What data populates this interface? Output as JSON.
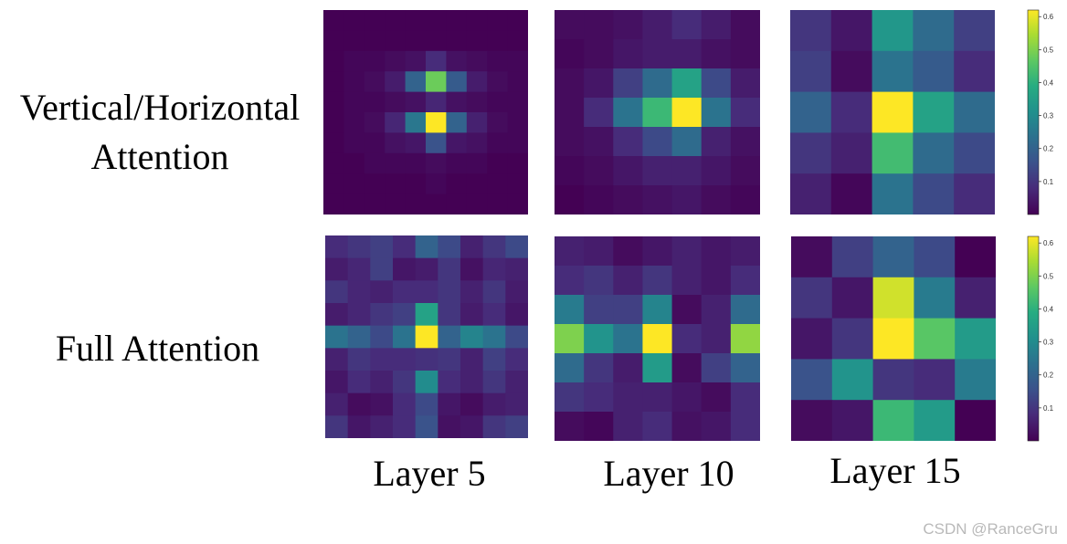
{
  "row_labels": [
    "Vertical/Horizontal\nAttention",
    "Full Attention"
  ],
  "column_labels": [
    "Layer 5",
    "Layer 10",
    "Layer 15"
  ],
  "watermark": "CSDN @RanceGru",
  "chart_data": {
    "type": "heatmap",
    "colormap": "viridis",
    "value_range": [
      0,
      0.62
    ],
    "colorbar_ticks": [
      "0.1",
      "0.2",
      "0.3",
      "0.4",
      "0.5",
      "0.6"
    ],
    "panels": [
      {
        "row": "Vertical/Horizontal Attention",
        "column": "Layer 5",
        "grid": [
          [
            0.0,
            0.0,
            0.0,
            0.0,
            0.0,
            0.0,
            0.0,
            0.0,
            0.0,
            0.0
          ],
          [
            0.0,
            0.0,
            0.0,
            0.0,
            0.0,
            0.0,
            0.0,
            0.0,
            0.0,
            0.0
          ],
          [
            0.0,
            0.01,
            0.01,
            0.02,
            0.03,
            0.08,
            0.03,
            0.02,
            0.01,
            0.01
          ],
          [
            0.0,
            0.01,
            0.02,
            0.05,
            0.2,
            0.48,
            0.18,
            0.05,
            0.02,
            0.01
          ],
          [
            0.0,
            0.01,
            0.01,
            0.02,
            0.03,
            0.07,
            0.03,
            0.02,
            0.01,
            0.01
          ],
          [
            0.0,
            0.01,
            0.02,
            0.07,
            0.25,
            0.62,
            0.2,
            0.06,
            0.02,
            0.01
          ],
          [
            0.0,
            0.01,
            0.01,
            0.03,
            0.04,
            0.16,
            0.04,
            0.03,
            0.01,
            0.01
          ],
          [
            0.0,
            0.0,
            0.01,
            0.01,
            0.01,
            0.02,
            0.01,
            0.01,
            0.0,
            0.0
          ],
          [
            0.0,
            0.0,
            0.0,
            0.0,
            0.0,
            0.01,
            0.0,
            0.0,
            0.0,
            0.0
          ],
          [
            0.0,
            0.0,
            0.0,
            0.0,
            0.0,
            0.0,
            0.0,
            0.0,
            0.0,
            0.0
          ]
        ]
      },
      {
        "row": "Vertical/Horizontal Attention",
        "column": "Layer 10",
        "grid": [
          [
            0.02,
            0.02,
            0.03,
            0.05,
            0.08,
            0.05,
            0.02
          ],
          [
            0.01,
            0.02,
            0.04,
            0.05,
            0.05,
            0.03,
            0.02
          ],
          [
            0.02,
            0.04,
            0.12,
            0.22,
            0.36,
            0.14,
            0.05
          ],
          [
            0.02,
            0.08,
            0.24,
            0.42,
            0.62,
            0.24,
            0.08
          ],
          [
            0.02,
            0.03,
            0.08,
            0.14,
            0.22,
            0.06,
            0.03
          ],
          [
            0.01,
            0.02,
            0.04,
            0.06,
            0.06,
            0.04,
            0.02
          ],
          [
            0.0,
            0.01,
            0.02,
            0.03,
            0.04,
            0.02,
            0.01
          ]
        ]
      },
      {
        "row": "Vertical/Horizontal Attention",
        "column": "Layer 15",
        "grid": [
          [
            0.1,
            0.04,
            0.33,
            0.22,
            0.12
          ],
          [
            0.12,
            0.02,
            0.24,
            0.18,
            0.08
          ],
          [
            0.2,
            0.08,
            0.62,
            0.36,
            0.22
          ],
          [
            0.1,
            0.06,
            0.43,
            0.22,
            0.14
          ],
          [
            0.06,
            0.01,
            0.24,
            0.14,
            0.08
          ]
        ]
      },
      {
        "row": "Full Attention",
        "column": "Layer 5",
        "grid": [
          [
            0.08,
            0.1,
            0.12,
            0.08,
            0.2,
            0.14,
            0.06,
            0.1,
            0.14
          ],
          [
            0.05,
            0.07,
            0.12,
            0.04,
            0.05,
            0.1,
            0.03,
            0.07,
            0.06
          ],
          [
            0.1,
            0.07,
            0.06,
            0.08,
            0.08,
            0.1,
            0.06,
            0.1,
            0.05
          ],
          [
            0.05,
            0.07,
            0.1,
            0.12,
            0.36,
            0.1,
            0.05,
            0.08,
            0.04
          ],
          [
            0.24,
            0.2,
            0.14,
            0.24,
            0.62,
            0.2,
            0.28,
            0.24,
            0.14
          ],
          [
            0.06,
            0.1,
            0.08,
            0.08,
            0.09,
            0.1,
            0.06,
            0.12,
            0.08
          ],
          [
            0.04,
            0.08,
            0.06,
            0.1,
            0.3,
            0.08,
            0.06,
            0.1,
            0.06
          ],
          [
            0.06,
            0.02,
            0.03,
            0.08,
            0.14,
            0.04,
            0.02,
            0.05,
            0.06
          ],
          [
            0.1,
            0.04,
            0.06,
            0.08,
            0.16,
            0.03,
            0.04,
            0.1,
            0.12
          ]
        ]
      },
      {
        "row": "Full Attention",
        "column": "Layer 10",
        "grid": [
          [
            0.06,
            0.05,
            0.02,
            0.04,
            0.06,
            0.04,
            0.05
          ],
          [
            0.08,
            0.1,
            0.06,
            0.1,
            0.06,
            0.04,
            0.08
          ],
          [
            0.26,
            0.12,
            0.12,
            0.28,
            0.02,
            0.06,
            0.22
          ],
          [
            0.5,
            0.32,
            0.24,
            0.62,
            0.08,
            0.06,
            0.52
          ],
          [
            0.22,
            0.1,
            0.05,
            0.34,
            0.02,
            0.12,
            0.2
          ],
          [
            0.1,
            0.08,
            0.06,
            0.06,
            0.04,
            0.02,
            0.08
          ],
          [
            0.02,
            0.01,
            0.06,
            0.08,
            0.03,
            0.04,
            0.08
          ]
        ]
      },
      {
        "row": "Full Attention",
        "column": "Layer 15",
        "grid": [
          [
            0.02,
            0.12,
            0.2,
            0.14,
            0.0
          ],
          [
            0.1,
            0.04,
            0.58,
            0.26,
            0.06
          ],
          [
            0.04,
            0.1,
            0.62,
            0.46,
            0.34
          ],
          [
            0.16,
            0.32,
            0.1,
            0.08,
            0.26
          ],
          [
            0.02,
            0.04,
            0.42,
            0.34,
            0.0
          ]
        ]
      }
    ]
  }
}
